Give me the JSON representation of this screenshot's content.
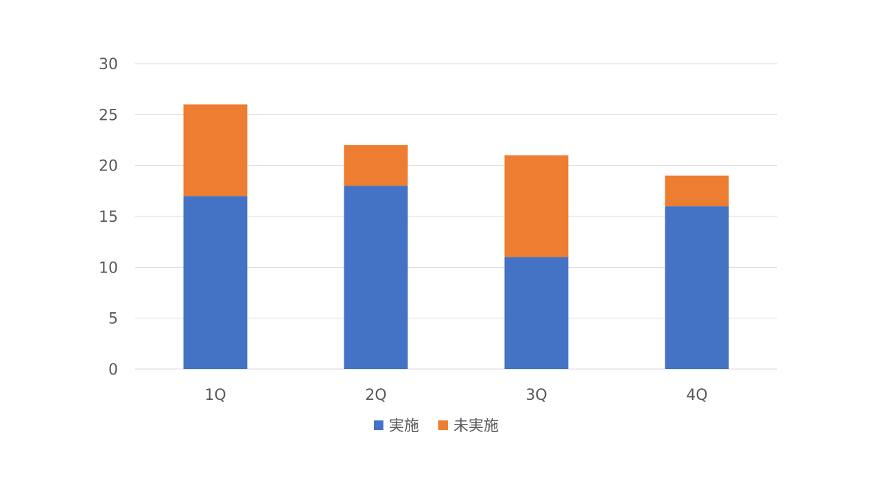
{
  "chart_data": {
    "type": "bar",
    "stacked": true,
    "categories": [
      "1Q",
      "2Q",
      "3Q",
      "4Q"
    ],
    "series": [
      {
        "name": "実施",
        "values": [
          17,
          18,
          11,
          16
        ],
        "color": "#4472C4"
      },
      {
        "name": "未実施",
        "values": [
          9,
          4,
          10,
          3
        ],
        "color": "#ED7D31"
      }
    ],
    "ylim": [
      0,
      30
    ],
    "yticks": [
      "0",
      "5",
      "10",
      "15",
      "20",
      "25",
      "30"
    ],
    "grid": true,
    "legend": "bottom"
  }
}
